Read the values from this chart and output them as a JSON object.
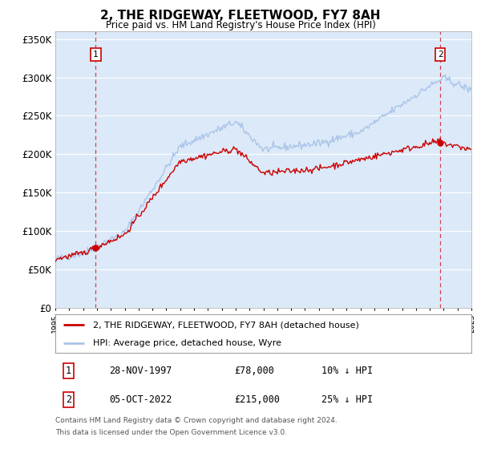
{
  "title": "2, THE RIDGEWAY, FLEETWOOD, FY7 8AH",
  "subtitle": "Price paid vs. HM Land Registry's House Price Index (HPI)",
  "ylim": [
    0,
    360000
  ],
  "yticks": [
    0,
    50000,
    100000,
    150000,
    200000,
    250000,
    300000,
    350000
  ],
  "ytick_labels": [
    "£0",
    "£50K",
    "£100K",
    "£150K",
    "£200K",
    "£250K",
    "£300K",
    "£350K"
  ],
  "bg_color": "#dce9f8",
  "grid_color": "#ffffff",
  "hpi_color": "#aac4e8",
  "price_color": "#cc0000",
  "dashed_color": "#cc000066",
  "sale1_year": 1997.917,
  "sale1_price": 78000,
  "sale2_year": 2022.75,
  "sale2_price": 215000,
  "sale1_date": "28-NOV-1997",
  "sale2_date": "05-OCT-2022",
  "sale1_pct": "10% ↓ HPI",
  "sale2_pct": "25% ↓ HPI",
  "sale1_price_str": "£78,000",
  "sale2_price_str": "£215,000",
  "legend_label1": "2, THE RIDGEWAY, FLEETWOOD, FY7 8AH (detached house)",
  "legend_label2": "HPI: Average price, detached house, Wyre",
  "footer1": "Contains HM Land Registry data © Crown copyright and database right 2024.",
  "footer2": "This data is licensed under the Open Government Licence v3.0.",
  "xmin": 1995,
  "xmax": 2025
}
